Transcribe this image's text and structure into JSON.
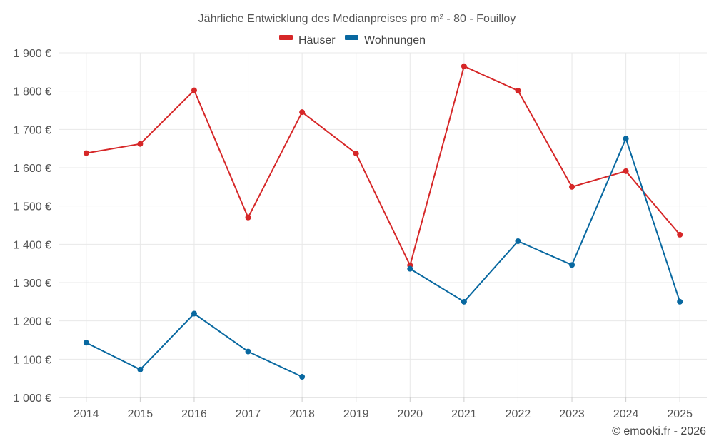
{
  "chart_data": {
    "type": "line",
    "title": "Jährliche Entwicklung des Medianpreises pro m² - 80 - Fouilloy",
    "categories": [
      "2014",
      "2015",
      "2016",
      "2017",
      "2018",
      "2019",
      "2020",
      "2021",
      "2022",
      "2023",
      "2024",
      "2025"
    ],
    "ylim": [
      1000,
      1900
    ],
    "ytick_values": [
      1000,
      1100,
      1200,
      1300,
      1400,
      1500,
      1600,
      1700,
      1800,
      1900
    ],
    "ytick_labels": [
      "1 000 €",
      "1 100 €",
      "1 200 €",
      "1 300 €",
      "1 400 €",
      "1 500 €",
      "1 600 €",
      "1 700 €",
      "1 800 €",
      "1 900 €"
    ],
    "legend_position": "top-center",
    "grid": true,
    "series": [
      {
        "name": "Häuser",
        "color": "#d62728",
        "values": [
          1638,
          1662,
          1802,
          1470,
          1745,
          1637,
          1345,
          1865,
          1801,
          1550,
          1591,
          1425
        ]
      },
      {
        "name": "Wohnungen",
        "color": "#0868a0",
        "values": [
          1143,
          1073,
          1219,
          1120,
          1054,
          null,
          1336,
          1250,
          1408,
          1346,
          1676,
          1250
        ]
      }
    ]
  },
  "credit": "© emooki.fr - 2026"
}
